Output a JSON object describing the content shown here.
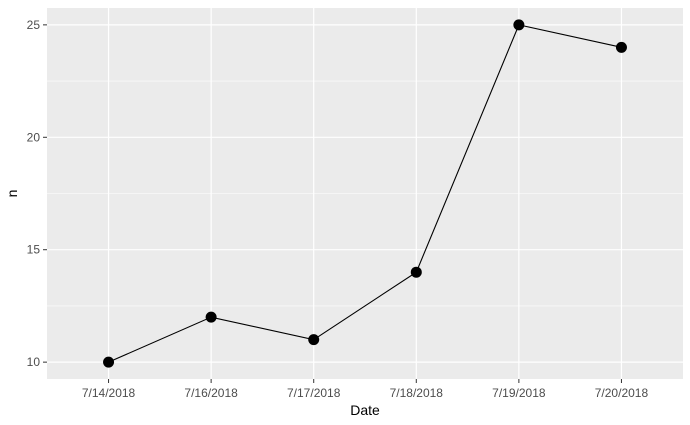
{
  "chart_data": {
    "type": "line",
    "title": "",
    "xlabel": "Date",
    "ylabel": "n",
    "categories": [
      "7/14/2018",
      "7/16/2018",
      "7/17/2018",
      "7/18/2018",
      "7/19/2018",
      "7/20/2018"
    ],
    "series": [
      {
        "values": [
          10,
          12,
          11,
          14,
          25,
          24
        ]
      }
    ],
    "ylim": [
      9.25,
      25.75
    ],
    "y_ticks": [
      10,
      15,
      20,
      25
    ],
    "grid": true,
    "point_markers": true,
    "legend": "none"
  },
  "colors": {
    "panel_background": "#ebebeb",
    "grid_major": "#ffffff",
    "line": "#000000",
    "points": "#000000",
    "tick_text": "#4d4d4d",
    "axis_title": "#000000"
  }
}
